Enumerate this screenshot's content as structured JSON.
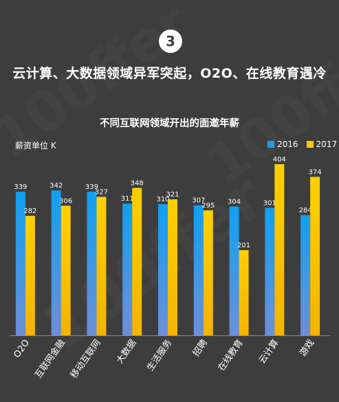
{
  "header": {
    "badge_number": "3",
    "headline": "云计算、大数据领域异军突起，O2O、在线教育遇冷"
  },
  "chart_data": {
    "type": "bar",
    "title": "不同互联网领域开出的面邀年薪",
    "ylabel": "薪资单位 K",
    "categories": [
      "O2O",
      "互联网金融",
      "移动互联网",
      "大数据",
      "生活服务",
      "招聘",
      "在线教育",
      "云计算",
      "游戏"
    ],
    "series": [
      {
        "name": "2016",
        "color": "#1aa0e8",
        "values": [
          339,
          342,
          339,
          311,
          310,
          307,
          304,
          301,
          284
        ]
      },
      {
        "name": "2017",
        "color": "#ffcc00",
        "values": [
          282,
          306,
          327,
          348,
          321,
          295,
          201,
          404,
          374
        ]
      }
    ],
    "ylim": [
      0,
      420
    ],
    "legend_position": "top-right",
    "grid": false
  }
}
